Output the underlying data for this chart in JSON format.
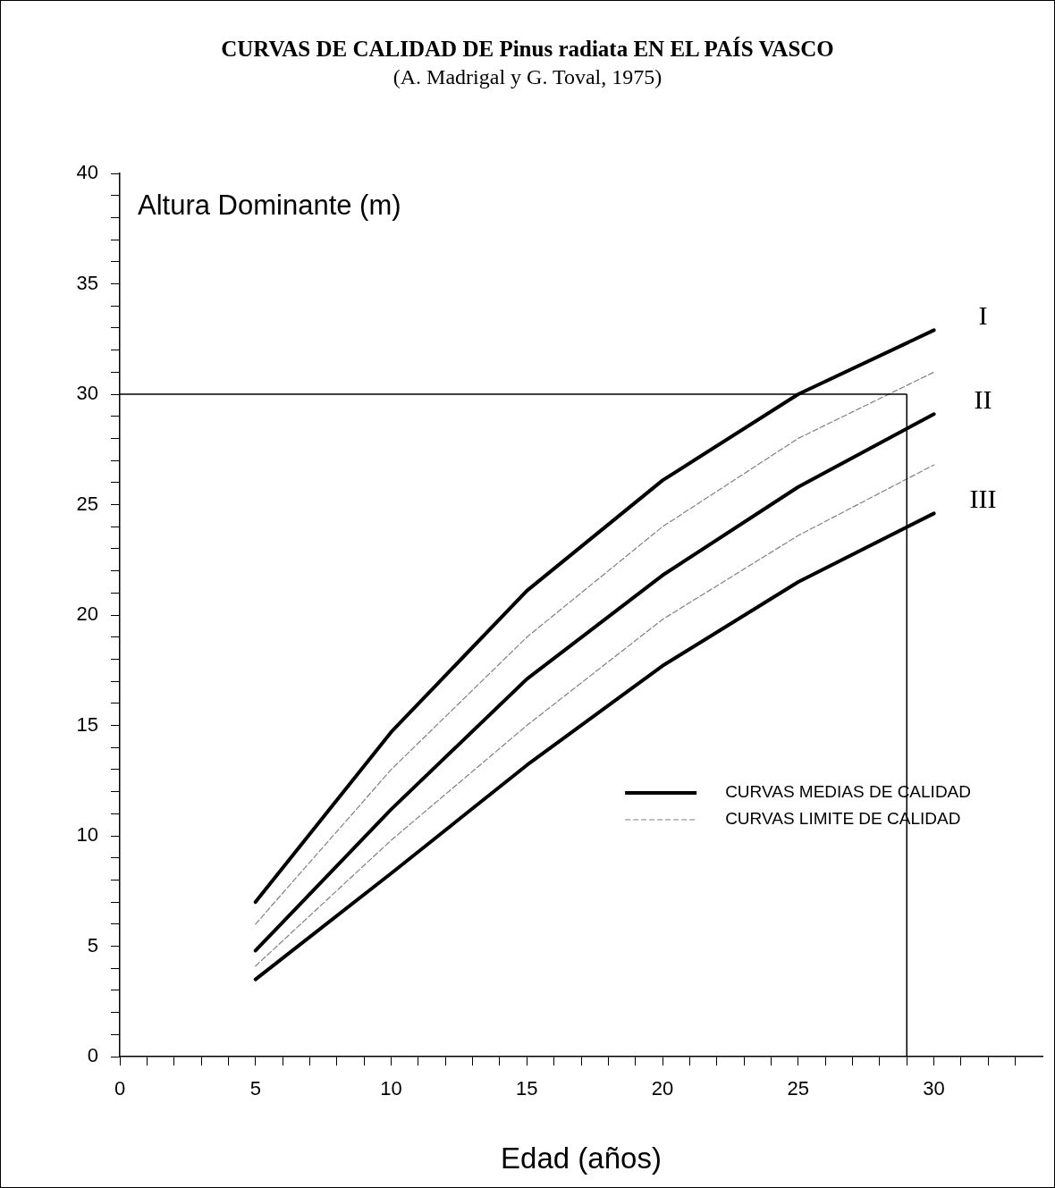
{
  "chart_data": {
    "type": "line",
    "title": "CURVAS DE CALIDAD DE Pinus radiata  EN EL PAÍS VASCO",
    "subtitle": "(A. Madrigal y G. Toval, 1975)",
    "xlabel": "Edad (años)",
    "ylabel": "Altura Dominante (m)",
    "x": [
      5,
      10,
      15,
      20,
      25,
      30
    ],
    "series": [
      {
        "name": "CURVAS MEDIAS DE CALIDAD",
        "color": "#000000",
        "line_style": "solid",
        "values": [
          7.0,
          14.7,
          21.1,
          26.1,
          30.0,
          32.9
        ]
      },
      {
        "name": "CURVAS LIMITE DE CALIDAD",
        "color": "#808080",
        "line_style": "dashed",
        "values": [
          6.0,
          13.0,
          19.0,
          24.0,
          28.0,
          31.0
        ]
      },
      {
        "color": "#000000",
        "line_style": "solid",
        "values": [
          4.8,
          11.2,
          17.1,
          21.8,
          25.8,
          29.1
        ]
      },
      {
        "color": "#808080",
        "line_style": "dashed",
        "values": [
          4.1,
          9.8,
          15.0,
          19.8,
          23.6,
          26.8
        ]
      },
      {
        "color": "#000000",
        "line_style": "solid",
        "values": [
          3.5,
          8.3,
          13.2,
          17.7,
          21.5,
          24.6
        ]
      }
    ],
    "annotations": [
      "I",
      "II",
      "III"
    ],
    "ref_lines": [
      {
        "axis": "y",
        "value": 30,
        "color": "#000000"
      },
      {
        "axis": "x",
        "value": 29,
        "color": "#000000"
      }
    ],
    "xlim": [
      0,
      34
    ],
    "ylim": [
      0,
      40
    ],
    "xticks": [
      0,
      {
        "value": 1,
        "label": null
      },
      {
        "value": 2,
        "label": null
      },
      {
        "value": 3,
        "label": null
      },
      {
        "value": 4,
        "label": null
      },
      5,
      {
        "value": 6,
        "label": null
      },
      {
        "value": 7,
        "label": null
      },
      {
        "value": 8,
        "label": null
      },
      {
        "value": 9,
        "label": null
      },
      10,
      {
        "value": 11,
        "label": null
      },
      {
        "value": 12,
        "label": null
      },
      {
        "value": 13,
        "label": null
      },
      {
        "value": 14,
        "label": null
      },
      15,
      {
        "value": 16,
        "label": null
      },
      {
        "value": 17,
        "label": null
      },
      {
        "value": 18,
        "label": null
      },
      {
        "value": 19,
        "label": null
      },
      20,
      {
        "value": 21,
        "label": null
      },
      {
        "value": 22,
        "label": null
      },
      {
        "value": 23,
        "label": null
      },
      {
        "value": 24,
        "label": null
      },
      25,
      {
        "value": 26,
        "label": null
      },
      {
        "value": 27,
        "label": null
      },
      {
        "value": 28,
        "label": null
      },
      {
        "value": 29,
        "label": null
      },
      30,
      {
        "value": 31,
        "label": null
      },
      {
        "value": 32,
        "label": null
      },
      {
        "value": 33,
        "label": null
      }
    ],
    "yticks": [
      0,
      {
        "value": 1,
        "label": null
      },
      {
        "value": 2,
        "label": null
      },
      {
        "value": 3,
        "label": null
      },
      {
        "value": 4,
        "label": null
      },
      5,
      {
        "value": 6,
        "label": null
      },
      {
        "value": 7,
        "label": null
      },
      {
        "value": 8,
        "label": null
      },
      {
        "value": 9,
        "label": null
      },
      10,
      {
        "value": 11,
        "label": null
      },
      {
        "value": 12,
        "label": null
      },
      {
        "value": 13,
        "label": null
      },
      {
        "value": 14,
        "label": null
      },
      15,
      {
        "value": 16,
        "label": null
      },
      {
        "value": 17,
        "label": null
      },
      {
        "value": 18,
        "label": null
      },
      {
        "value": 19,
        "label": null
      },
      20,
      {
        "value": 21,
        "label": null
      },
      {
        "value": 22,
        "label": null
      },
      {
        "value": 23,
        "label": null
      },
      {
        "value": 24,
        "label": null
      },
      25,
      {
        "value": 26,
        "label": null
      },
      {
        "value": 27,
        "label": null
      },
      {
        "value": 28,
        "label": null
      },
      {
        "value": 29,
        "label": null
      },
      30,
      {
        "value": 31,
        "label": null
      },
      {
        "value": 32,
        "label": null
      },
      {
        "value": 33,
        "label": null
      },
      {
        "value": 34,
        "label": null
      },
      35,
      {
        "value": 36,
        "label": null
      },
      {
        "value": 37,
        "label": null
      },
      {
        "value": 38,
        "label": null
      },
      {
        "value": 39,
        "label": null
      },
      40
    ],
    "grid": false,
    "legend": "bottom right",
    "marker": "none"
  }
}
